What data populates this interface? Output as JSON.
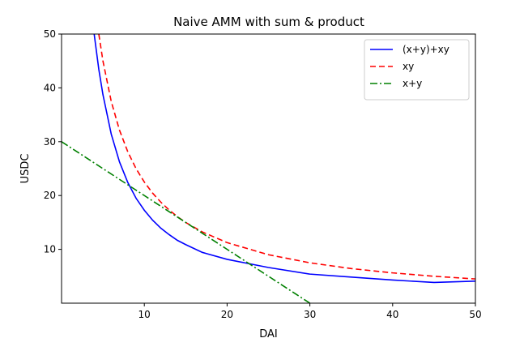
{
  "chart_data": {
    "type": "line",
    "title": "Naive AMM with sum & product",
    "xlabel": "DAI",
    "ylabel": "USDC",
    "xlim": [
      0,
      50
    ],
    "ylim": [
      0,
      50
    ],
    "xticks": [
      10,
      20,
      30,
      40,
      50
    ],
    "yticks": [
      10,
      20,
      30,
      40,
      50
    ],
    "grid": false,
    "legend_position": "top-right",
    "series": [
      {
        "name": "(x+y)+xy",
        "color": "#0000ff",
        "style": "solid",
        "x": [
          3.94,
          4.5,
          5,
          6,
          7,
          8,
          9,
          10,
          11,
          12,
          13,
          14,
          15,
          17,
          20,
          25,
          30,
          35,
          40,
          45,
          50
        ],
        "y": [
          50,
          43.45,
          38.75,
          31.43,
          26.25,
          22.44,
          19.5,
          17.27,
          15.42,
          13.92,
          12.73,
          11.67,
          10.88,
          9.44,
          8.14,
          6.63,
          5.4,
          4.84,
          4.3,
          3.85,
          4.09
        ]
      },
      {
        "name": "xy",
        "color": "#ff0000",
        "style": "dashed",
        "x": [
          4.5,
          5,
          6,
          7,
          8,
          9,
          10,
          11,
          12,
          13,
          14,
          15,
          17,
          20,
          25,
          30,
          35,
          40,
          45,
          50
        ],
        "y": [
          50,
          45,
          37.5,
          32.14,
          28.13,
          25,
          22.5,
          20.45,
          18.75,
          17.31,
          16.07,
          15,
          13.24,
          11.25,
          9,
          7.5,
          6.43,
          5.63,
          5,
          4.5
        ]
      },
      {
        "name": "x+y",
        "color": "#008000",
        "style": "dashdot",
        "x": [
          0,
          30
        ],
        "y": [
          30,
          0
        ]
      }
    ]
  }
}
